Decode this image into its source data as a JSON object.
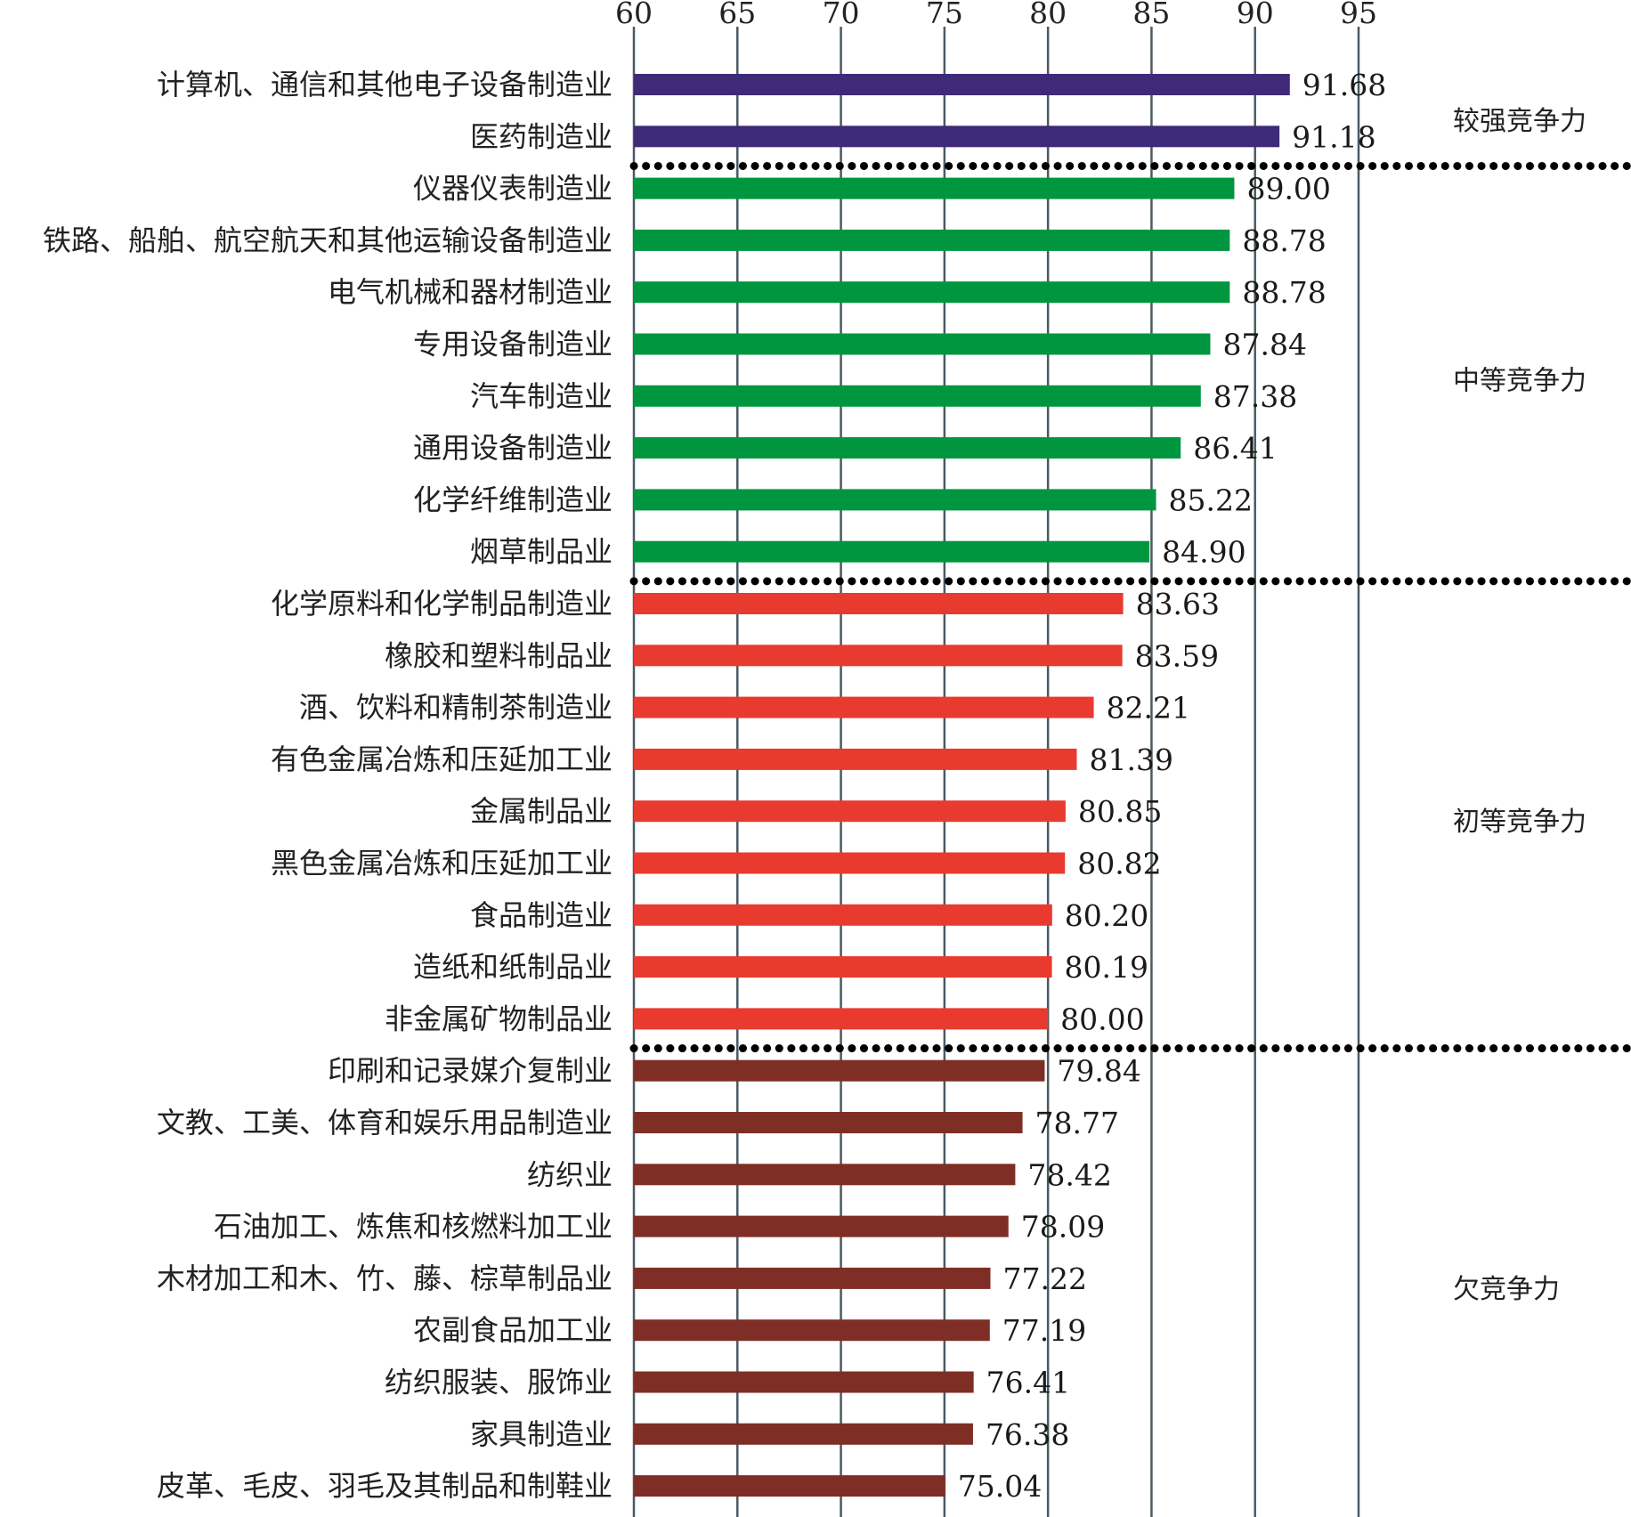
{
  "chart_data": {
    "type": "bar",
    "orientation": "horizontal",
    "xlim": [
      60,
      95
    ],
    "x_ticks": [
      60,
      65,
      70,
      75,
      80,
      85,
      90,
      95
    ],
    "grid": "vertical",
    "title": "",
    "xlabel": "",
    "ylabel": "",
    "categories": [
      "计算机、通信和其他电子设备制造业",
      "医药制造业",
      "仪器仪表制造业",
      "铁路、船舶、航空航天和其他运输设备制造业",
      "电气机械和器材制造业",
      "专用设备制造业",
      "汽车制造业",
      "通用设备制造业",
      "化学纤维制造业",
      "烟草制品业",
      "化学原料和化学制品制造业",
      "橡胶和塑料制品业",
      "酒、饮料和精制茶制造业",
      "有色金属冶炼和压延加工业",
      "金属制品业",
      "黑色金属冶炼和压延加工业",
      "食品制造业",
      "造纸和纸制品业",
      "非金属矿物制品业",
      "印刷和记录媒介复制业",
      "文教、工美、体育和娱乐用品制造业",
      "纺织业",
      "石油加工、炼焦和核燃料加工业",
      "木材加工和木、竹、藤、棕草制品业",
      "农副食品加工业",
      "纺织服装、服饰业",
      "家具制造业",
      "皮革、毛皮、羽毛及其制品和制鞋业"
    ],
    "values": [
      91.68,
      91.18,
      89.0,
      88.78,
      88.78,
      87.84,
      87.38,
      86.41,
      85.22,
      84.9,
      83.63,
      83.59,
      82.21,
      81.39,
      80.85,
      80.82,
      80.2,
      80.19,
      80.0,
      79.84,
      78.77,
      78.42,
      78.09,
      77.22,
      77.19,
      76.41,
      76.38,
      75.04
    ],
    "value_labels": [
      "91.68",
      "91.18",
      "89.00",
      "88.78",
      "88.78",
      "87.84",
      "87.38",
      "86.41",
      "85.22",
      "84.90",
      "83.63",
      "83.59",
      "82.21",
      "81.39",
      "80.85",
      "80.82",
      "80.20",
      "80.19",
      "80.00",
      "79.84",
      "78.77",
      "78.42",
      "78.09",
      "77.22",
      "77.19",
      "76.41",
      "76.38",
      "75.04"
    ],
    "groups": [
      {
        "label": "较强竞争力",
        "start": 0,
        "end": 1,
        "color": "#3f2a78"
      },
      {
        "label": "中等竞争力",
        "start": 2,
        "end": 9,
        "color": "#009640"
      },
      {
        "label": "初等竞争力",
        "start": 10,
        "end": 18,
        "color": "#e83a2f"
      },
      {
        "label": "欠竞争力",
        "start": 19,
        "end": 27,
        "color": "#7f2e26"
      }
    ]
  },
  "colors": {
    "grid": "#4a5a63",
    "separator": "#000000"
  }
}
